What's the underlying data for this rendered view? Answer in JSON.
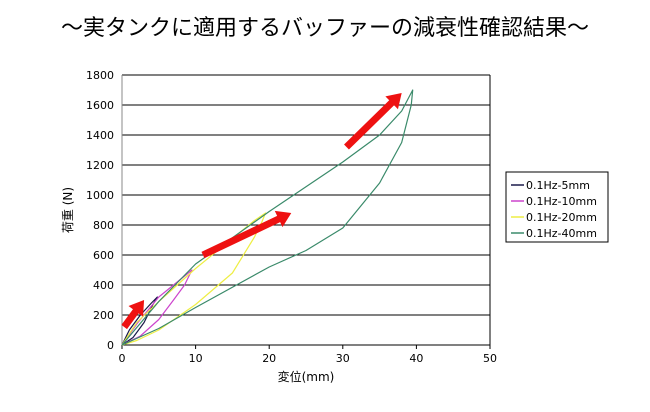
{
  "title": "～実タンクに適用するバッファーの減衰性確認結果～",
  "chart_data": {
    "type": "line",
    "xlabel": "変位(mm)",
    "ylabel": "荷重 (N)",
    "xlim": [
      0,
      50
    ],
    "ylim": [
      0,
      1800
    ],
    "xticks": [
      0,
      10,
      20,
      30,
      40,
      50
    ],
    "yticks": [
      0,
      200,
      400,
      600,
      800,
      1000,
      1200,
      1400,
      1600,
      1800
    ],
    "grid": "horizontal",
    "legend": "right",
    "series": [
      {
        "name": "0.1Hz-5mm",
        "color": "#1a1a4a",
        "x": [
          0,
          1,
          2.5,
          4,
          4.8,
          4.2,
          3,
          1.5,
          0
        ],
        "y": [
          0,
          100,
          200,
          280,
          320,
          270,
          150,
          50,
          0
        ]
      },
      {
        "name": "0.1Hz-10mm",
        "color": "#cc44cc",
        "x": [
          0,
          2,
          5,
          8,
          9.5,
          8.5,
          7,
          5,
          2.5,
          0
        ],
        "y": [
          0,
          140,
          320,
          440,
          500,
          400,
          300,
          170,
          60,
          0
        ]
      },
      {
        "name": "0.1Hz-20mm",
        "color": "#eeee44",
        "x": [
          0,
          2,
          5,
          10,
          15,
          18,
          19.5,
          19,
          18,
          15,
          10,
          5,
          2,
          0
        ],
        "y": [
          0,
          150,
          290,
          510,
          710,
          830,
          880,
          820,
          720,
          480,
          270,
          100,
          30,
          0
        ]
      },
      {
        "name": "0.1Hz-40mm",
        "color": "#3a8a6a",
        "x": [
          0,
          5,
          10,
          20,
          30,
          35,
          38,
          39.5,
          39.3,
          38,
          35,
          30,
          25,
          20,
          10,
          5,
          0
        ],
        "y": [
          0,
          290,
          540,
          890,
          1220,
          1400,
          1560,
          1700,
          1600,
          1350,
          1080,
          780,
          630,
          520,
          250,
          110,
          0
        ]
      }
    ]
  }
}
